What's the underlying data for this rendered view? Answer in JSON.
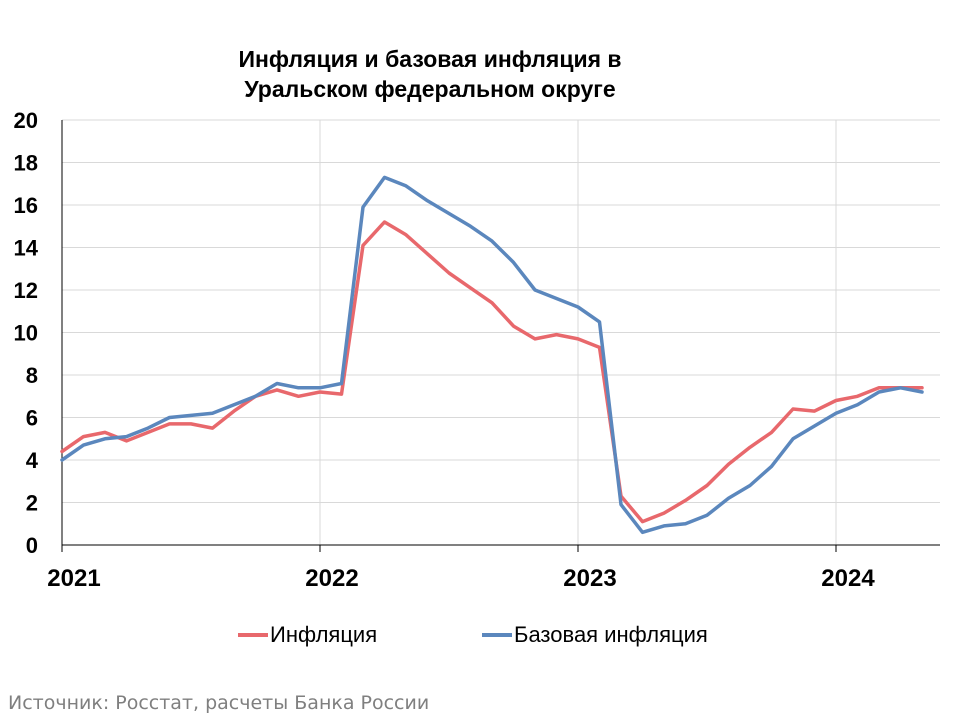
{
  "chart_data": {
    "type": "line",
    "title": [
      "Инфляция и базовая инфляция в",
      "Уральском федеральном округе"
    ],
    "xlabel": "",
    "ylabel": "",
    "ylim": [
      0,
      20
    ],
    "yticks": [
      "0",
      "2",
      "4",
      "6",
      "8",
      "10",
      "12",
      "14",
      "16",
      "18",
      "20"
    ],
    "xticks": [
      "2021",
      "2022",
      "2023",
      "2024"
    ],
    "x": [
      "2021-01",
      "2021-02",
      "2021-03",
      "2021-04",
      "2021-05",
      "2021-06",
      "2021-07",
      "2021-08",
      "2021-09",
      "2021-10",
      "2021-11",
      "2021-12",
      "2022-01",
      "2022-02",
      "2022-03",
      "2022-04",
      "2022-05",
      "2022-06",
      "2022-07",
      "2022-08",
      "2022-09",
      "2022-10",
      "2022-11",
      "2022-12",
      "2023-01",
      "2023-02",
      "2023-03",
      "2023-04",
      "2023-05",
      "2023-06",
      "2023-07",
      "2023-08",
      "2023-09",
      "2023-10",
      "2023-11",
      "2023-12",
      "2024-01",
      "2024-02",
      "2024-03",
      "2024-04",
      "2024-05"
    ],
    "grid": true,
    "legend_position": "bottom",
    "series": [
      {
        "name": "Инфляция",
        "color": "#e8686c",
        "values": [
          4.4,
          5.1,
          5.3,
          4.9,
          5.3,
          5.7,
          5.7,
          5.5,
          6.3,
          7.0,
          7.3,
          7.0,
          7.2,
          7.1,
          14.1,
          15.2,
          14.6,
          13.7,
          12.8,
          12.1,
          11.4,
          10.3,
          9.7,
          9.9,
          9.7,
          9.3,
          2.3,
          1.1,
          1.5,
          2.1,
          2.8,
          3.8,
          4.6,
          5.3,
          6.4,
          6.3,
          6.8,
          7.0,
          7.4,
          7.4,
          7.4
        ]
      },
      {
        "name": "Базовая инфляция",
        "color": "#5b87bd",
        "values": [
          4.0,
          4.7,
          5.0,
          5.1,
          5.5,
          6.0,
          6.1,
          6.2,
          6.6,
          7.0,
          7.6,
          7.4,
          7.4,
          7.6,
          15.9,
          17.3,
          16.9,
          16.2,
          15.6,
          15.0,
          14.3,
          13.3,
          12.0,
          11.6,
          11.2,
          10.5,
          1.9,
          0.6,
          0.9,
          1.0,
          1.4,
          2.2,
          2.8,
          3.7,
          5.0,
          5.6,
          6.2,
          6.6,
          7.2,
          7.4,
          7.2
        ]
      }
    ]
  },
  "source_text": "Источник: Росстат, расчеты Банка России"
}
